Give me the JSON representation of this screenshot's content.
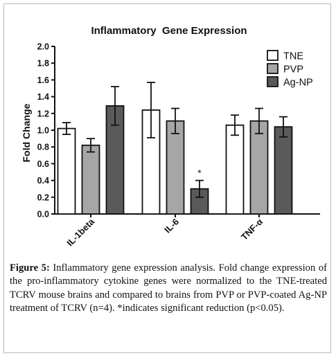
{
  "chart_data": {
    "type": "bar",
    "title": "Inflammatory  Gene Expression",
    "ylabel": "Fold Change",
    "xlabel": "",
    "ylim": [
      0,
      2.0
    ],
    "yticks": [
      "0.0",
      "0.2",
      "0.4",
      "0.6",
      "0.8",
      "1.0",
      "1.2",
      "1.4",
      "1.6",
      "1.8",
      "2.0"
    ],
    "yticks_values": [
      0,
      0.2,
      0.4,
      0.6,
      0.8,
      1.0,
      1.2,
      1.4,
      1.6,
      1.8,
      2.0
    ],
    "categories": [
      "IL-1beta",
      "IL-6",
      "TNF-α"
    ],
    "series": [
      {
        "name": "TNE",
        "color": "#ffffff",
        "values": [
          1.02,
          1.24,
          1.06
        ],
        "errors": [
          0.07,
          0.33,
          0.12
        ]
      },
      {
        "name": "PVP",
        "color": "#a6a6a6",
        "values": [
          0.82,
          1.11,
          1.11
        ],
        "errors": [
          0.08,
          0.15,
          0.15
        ]
      },
      {
        "name": "Ag-NP",
        "color": "#5a5a5a",
        "values": [
          1.29,
          0.3,
          1.04
        ],
        "errors": [
          0.23,
          0.1,
          0.12
        ]
      }
    ],
    "annotations": [
      {
        "text": "*",
        "category": "IL-6",
        "series": "Ag-NP"
      }
    ],
    "legend_position": "top-right",
    "grid": false
  },
  "caption": {
    "label": "Figure 5:",
    "text": " Inflammatory gene expression analysis. Fold change expression of the pro-inflammatory cytokine genes were normalized to the TNE-treated TCRV mouse brains and compared to brains from PVP or PVP-coated Ag-NP treatment of TCRV (n=4). *indicates significant reduction (p<0.05)."
  }
}
